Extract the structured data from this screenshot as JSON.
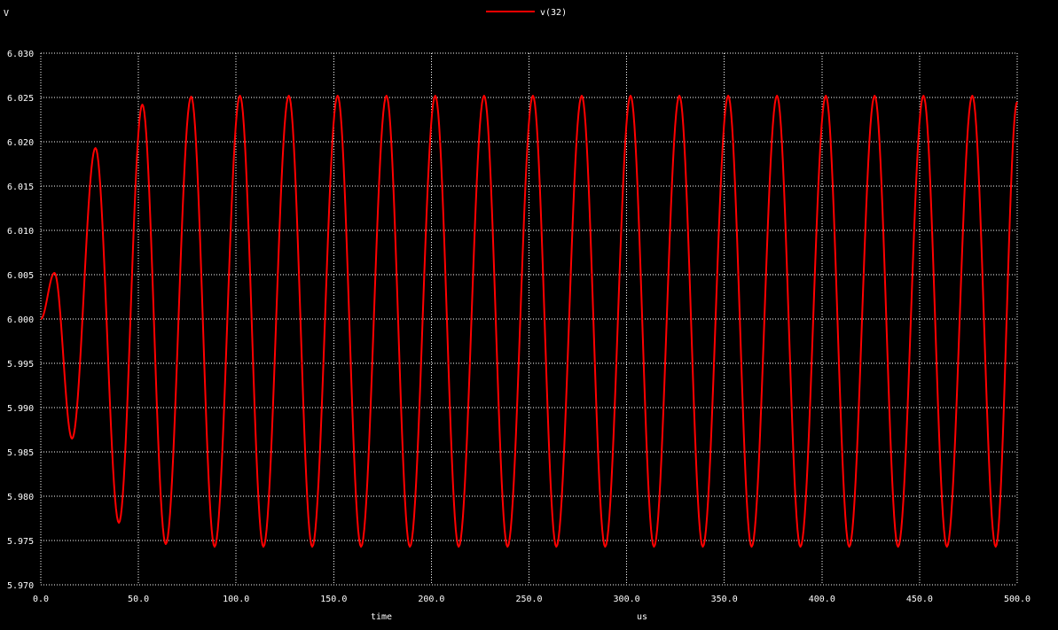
{
  "chart_data": {
    "type": "line",
    "title": "",
    "xlabel": "time",
    "xunit": "us",
    "ylabel": "V",
    "xlim": [
      0,
      500
    ],
    "ylim": [
      5.97,
      6.03
    ],
    "grid": true,
    "legend_position": "top-center",
    "xticks": [
      "0.0",
      "50.0",
      "100.0",
      "150.0",
      "200.0",
      "250.0",
      "300.0",
      "350.0",
      "400.0",
      "450.0",
      "500.0"
    ],
    "yticks": [
      "5.970",
      "5.975",
      "5.980",
      "5.985",
      "5.990",
      "5.995",
      "6.000",
      "6.005",
      "6.010",
      "6.015",
      "6.020",
      "6.025",
      "6.030"
    ],
    "series": [
      {
        "name": "v(32)",
        "color": "#ff0000",
        "x": [
          0,
          7,
          16,
          28,
          40,
          52,
          64,
          77,
          89,
          102,
          114,
          127,
          139,
          152,
          164,
          177,
          189,
          202,
          214,
          227,
          239,
          252,
          264,
          277,
          289,
          302,
          314,
          327,
          339,
          352,
          364,
          377,
          389,
          402,
          414,
          427,
          439,
          452,
          464,
          477,
          489,
          500
        ],
        "values": [
          6.0,
          6.0052,
          5.9865,
          6.0193,
          5.977,
          6.0242,
          5.9746,
          6.0251,
          5.9743,
          6.0252,
          5.9743,
          6.0252,
          5.9743,
          6.0252,
          5.9743,
          6.0252,
          5.9743,
          6.0252,
          5.9743,
          6.0252,
          5.9743,
          6.0252,
          5.9743,
          6.0252,
          5.9743,
          6.0252,
          5.9743,
          6.0252,
          5.9743,
          6.0252,
          5.9743,
          6.0252,
          5.9743,
          6.0252,
          5.9743,
          6.0252,
          5.9743,
          6.0252,
          5.9743,
          6.0252,
          5.9743,
          6.0245
        ]
      }
    ]
  },
  "colors": {
    "background": "#000000",
    "grid": "#ffffff",
    "text": "#ffffff",
    "trace": "#ff0000"
  }
}
